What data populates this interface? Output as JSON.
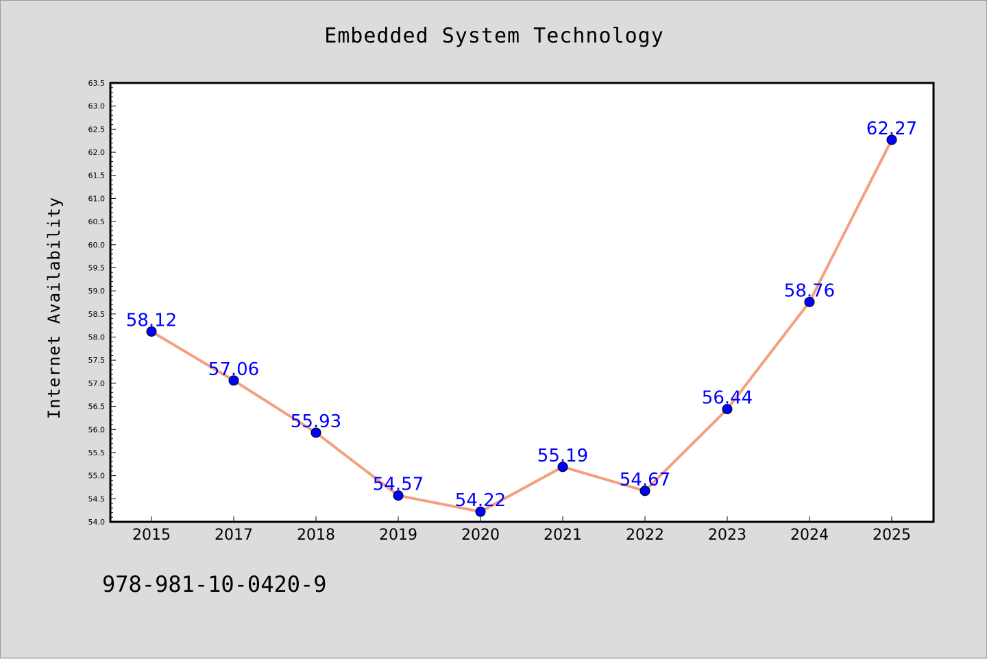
{
  "chart_data": {
    "type": "line",
    "title": "Embedded System Technology",
    "xlabel": "",
    "ylabel": "Internet Availability",
    "categories": [
      "2015",
      "2017",
      "2018",
      "2019",
      "2020",
      "2021",
      "2022",
      "2023",
      "2024",
      "2025"
    ],
    "series": [
      {
        "values": [
          58.12,
          57.06,
          55.93,
          54.57,
          54.22,
          55.19,
          54.67,
          56.44,
          58.76,
          62.27
        ]
      }
    ],
    "data_labels": [
      "58.12",
      "57.06",
      "55.93",
      "54.57",
      "54.22",
      "55.19",
      "54.67",
      "56.44",
      "58.76",
      "62.27"
    ],
    "ylim": [
      54.0,
      63.5
    ],
    "yticks": [
      "54.0",
      "54.5",
      "55.0",
      "55.5",
      "56.0",
      "56.5",
      "57.0",
      "57.5",
      "58.0",
      "58.5",
      "59.0",
      "59.5",
      "60.0",
      "60.5",
      "61.0",
      "61.5",
      "62.0",
      "62.5",
      "63.0",
      "63.5"
    ],
    "grid": false,
    "legend": "none",
    "colors": {
      "line": "#f4a07e",
      "marker": "#0000ff",
      "label": "#0000ff",
      "background": "#dcdcdc",
      "plot_area": "#ffffff"
    }
  },
  "footer": {
    "code": "978-981-10-0420-9"
  }
}
